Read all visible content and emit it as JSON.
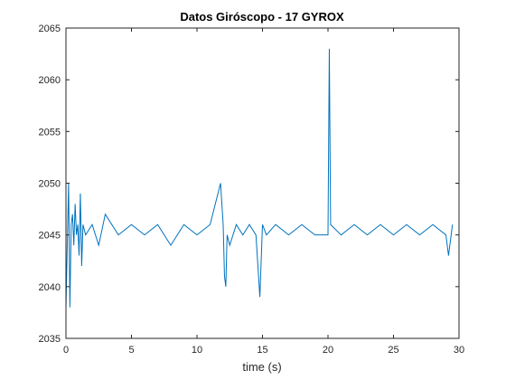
{
  "chart_data": {
    "type": "line",
    "title": "Datos Giróscopo - 17 GYROX",
    "xlabel": "time (s)",
    "ylabel": "",
    "xlim": [
      0,
      30
    ],
    "ylim": [
      2035,
      2065
    ],
    "xticks": [
      "0",
      "5",
      "10",
      "15",
      "20",
      "25",
      "30"
    ],
    "yticks": [
      "2035",
      "2040",
      "2045",
      "2050",
      "2055",
      "2060",
      "2065"
    ],
    "grid": false,
    "legend": "none",
    "series": [
      {
        "color": "#0072BD",
        "x": [
          0.0,
          0.1,
          0.2,
          0.3,
          0.4,
          0.5,
          0.6,
          0.7,
          0.8,
          0.9,
          1.0,
          1.1,
          1.2,
          1.3,
          1.5,
          2.0,
          2.5,
          3.0,
          4.0,
          5.0,
          6.0,
          7.0,
          8.0,
          9.0,
          10.0,
          11.0,
          11.8,
          12.0,
          12.1,
          12.2,
          12.3,
          12.5,
          13.0,
          13.5,
          14.0,
          14.5,
          14.8,
          15.0,
          15.3,
          16.0,
          17.0,
          18.0,
          19.0,
          20.0,
          20.1,
          20.2,
          21.0,
          22.0,
          23.0,
          24.0,
          25.0,
          26.0,
          27.0,
          28.0,
          29.0,
          29.2,
          29.5
        ],
        "y": [
          2038,
          2044,
          2050,
          2038,
          2046,
          2047,
          2044,
          2048,
          2045,
          2046,
          2043,
          2049,
          2042,
          2046,
          2045,
          2046,
          2044,
          2047,
          2045,
          2046,
          2045,
          2046,
          2044,
          2046,
          2045,
          2046,
          2050,
          2046,
          2041,
          2040,
          2045,
          2044,
          2046,
          2045,
          2046,
          2045,
          2039,
          2046,
          2045,
          2046,
          2045,
          2046,
          2045,
          2045,
          2063,
          2046,
          2045,
          2046,
          2045,
          2046,
          2045,
          2046,
          2045,
          2046,
          2045,
          2043,
          2046
        ]
      }
    ]
  }
}
